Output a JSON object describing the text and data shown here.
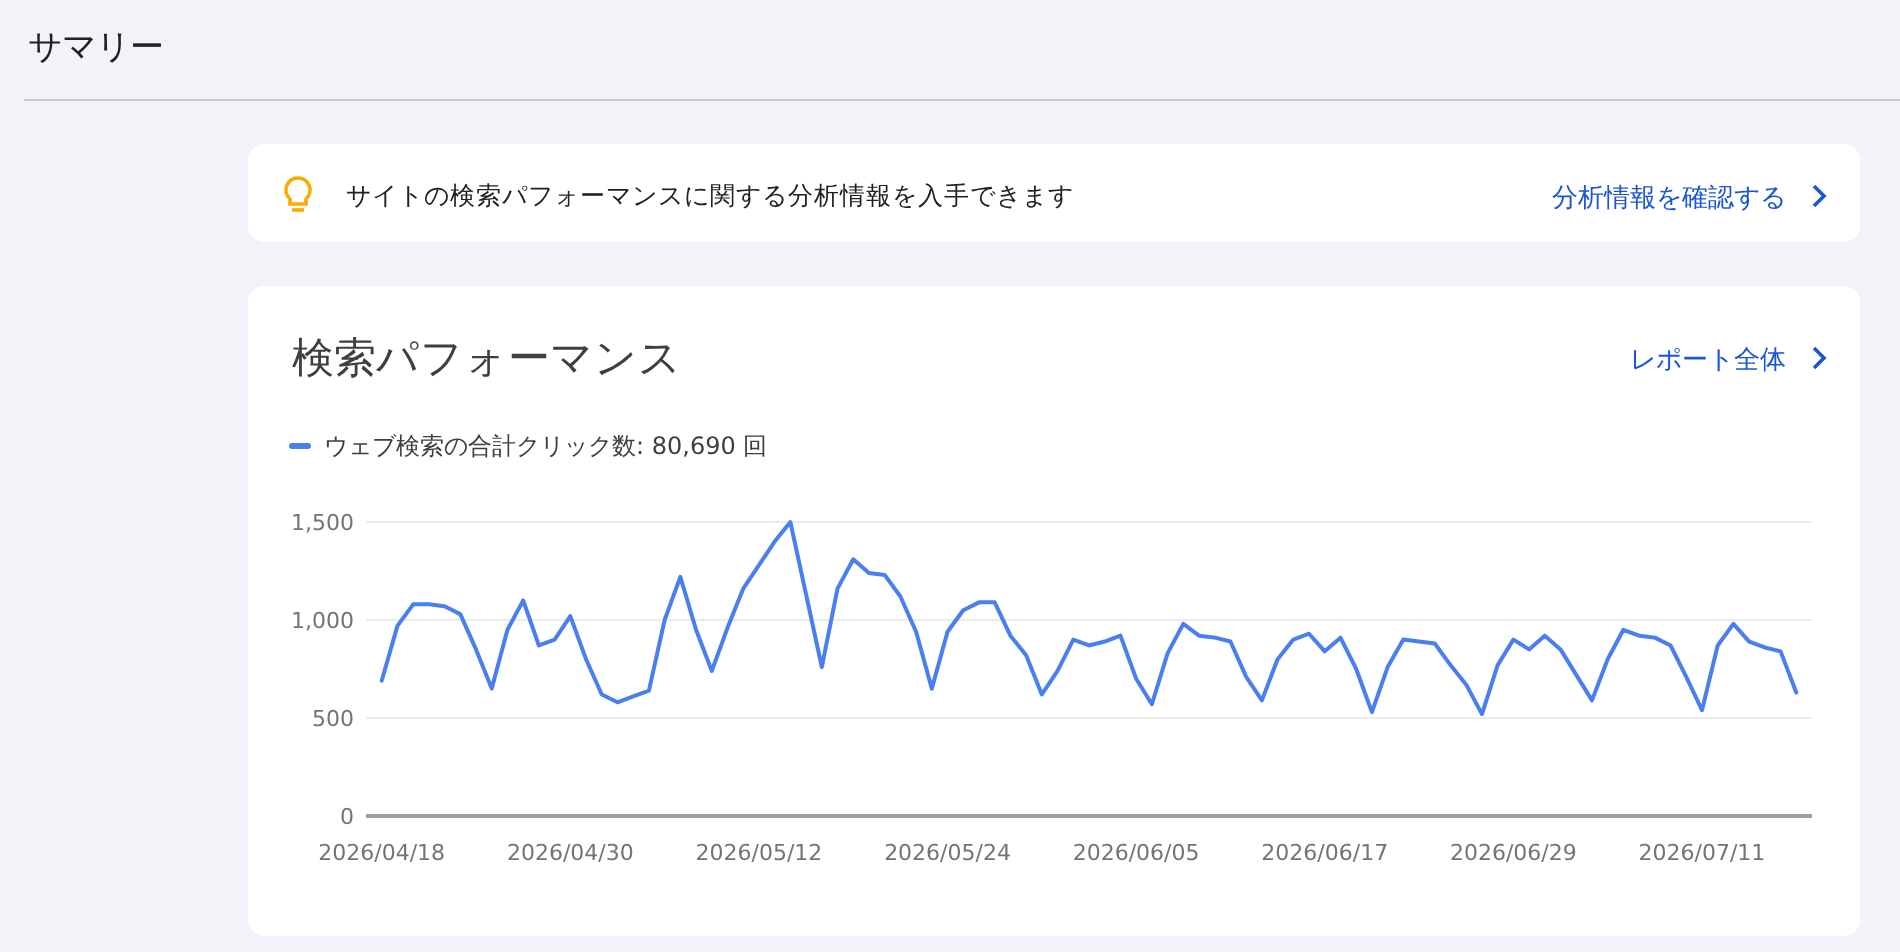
{
  "chart_data": {
    "type": "line",
    "title": "検索パフォーマンス",
    "annotations": [
      "サマリー",
      "サイトの検索パフォーマンスに関する分析情報を入手できます",
      "分析情報を確認する",
      "レポート全体"
    ],
    "x": [
      "2026-04-18",
      "2026-04-19",
      "2026-04-20",
      "2026-04-21",
      "2026-04-22",
      "2026-04-23",
      "2026-04-24",
      "2026-04-25",
      "2026-04-26",
      "2026-04-27",
      "2026-04-28",
      "2026-04-29",
      "2026-04-30",
      "2026-05-01",
      "2026-05-02",
      "2026-05-03",
      "2026-05-04",
      "2026-05-05",
      "2026-05-06",
      "2026-05-07",
      "2026-05-08",
      "2026-05-09",
      "2026-05-10",
      "2026-05-11",
      "2026-05-12",
      "2026-05-13",
      "2026-05-14",
      "2026-05-15",
      "2026-05-16",
      "2026-05-17",
      "2026-05-18",
      "2026-05-19",
      "2026-05-20",
      "2026-05-21",
      "2026-05-22",
      "2026-05-23",
      "2026-05-24",
      "2026-05-25",
      "2026-05-26",
      "2026-05-27",
      "2026-05-28",
      "2026-05-29",
      "2026-05-30",
      "2026-05-31",
      "2026-06-01",
      "2026-06-02",
      "2026-06-03",
      "2026-06-04",
      "2026-06-05",
      "2026-06-06",
      "2026-06-07",
      "2026-06-08",
      "2026-06-09",
      "2026-06-10",
      "2026-06-11",
      "2026-06-12",
      "2026-06-13",
      "2026-06-14",
      "2026-06-15",
      "2026-06-16",
      "2026-06-17",
      "2026-06-18",
      "2026-06-19",
      "2026-06-20",
      "2026-06-21",
      "2026-06-22",
      "2026-06-23",
      "2026-06-24",
      "2026-06-25",
      "2026-06-26",
      "2026-06-27",
      "2026-06-28",
      "2026-06-29",
      "2026-06-30",
      "2026-07-01",
      "2026-07-02",
      "2026-07-03",
      "2026-07-04",
      "2026-07-05",
      "2026-07-06",
      "2026-07-07",
      "2026-07-08",
      "2026-07-09",
      "2026-07-10",
      "2026-07-11",
      "2026-07-12",
      "2026-07-13",
      "2026-07-14",
      "2026-07-15",
      "2026-07-16",
      "2026-07-17"
    ],
    "series": [
      {
        "name": "ウェブ検索の合計クリック数: 80,690 回",
        "color": "#4a7ff0",
        "values": [
          690,
          970,
          1080,
          1080,
          1070,
          1030,
          850,
          650,
          950,
          1100,
          870,
          900,
          1020,
          800,
          620,
          580,
          610,
          640,
          1000,
          1220,
          950,
          740,
          960,
          1160,
          1280,
          1400,
          1500,
          1130,
          760,
          1160,
          1310,
          1240,
          1230,
          1120,
          940,
          650,
          940,
          1050,
          1090,
          1090,
          920,
          820,
          620,
          740,
          900,
          870,
          890,
          920,
          700,
          570,
          830,
          980,
          920,
          910,
          890,
          710,
          590,
          800,
          900,
          930,
          840,
          910,
          750,
          530,
          760,
          900,
          890,
          880,
          770,
          670,
          520,
          770,
          900,
          850,
          920,
          850,
          720,
          590,
          800,
          950,
          920,
          910,
          870,
          710,
          540,
          870,
          980,
          890,
          860,
          840,
          630
        ]
      }
    ],
    "xlim": [
      "2026-04-17",
      "2026-07-18"
    ],
    "xticks": [
      {
        "value": "2026-04-18",
        "label": "2026/04/18"
      },
      {
        "value": "2026-04-30",
        "label": "2026/04/30"
      },
      {
        "value": "2026-05-12",
        "label": "2026/05/12"
      },
      {
        "value": "2026-05-24",
        "label": "2026/05/24"
      },
      {
        "value": "2026-06-05",
        "label": "2026/06/05"
      },
      {
        "value": "2026-06-17",
        "label": "2026/06/17"
      },
      {
        "value": "2026-06-29",
        "label": "2026/06/29"
      },
      {
        "value": "2026-07-11",
        "label": "2026/07/11"
      }
    ],
    "ylim": [
      0,
      1500
    ],
    "yticks": [
      {
        "value": 0,
        "label": "0"
      },
      {
        "value": 500,
        "label": "500"
      },
      {
        "value": 1000,
        "label": "1,000"
      },
      {
        "value": 1500,
        "label": "1,500"
      }
    ],
    "grid": "y",
    "legend": "top left"
  }
}
